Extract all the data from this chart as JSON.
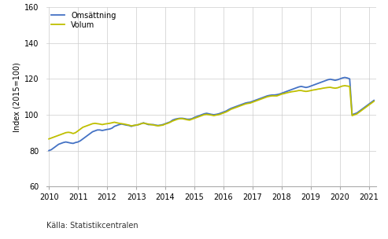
{
  "title": "",
  "ylabel": "Index (2015=100)",
  "source": "Källa: Statistikcentralen",
  "legend_omsattning": "Omsättning",
  "legend_volum": "Volum",
  "color_omsattning": "#4472C4",
  "color_volum": "#BFBF00",
  "ylim": [
    60,
    160
  ],
  "yticks": [
    60,
    80,
    100,
    120,
    140,
    160
  ],
  "background_color": "#ffffff",
  "grid_color": "#cccccc",
  "line_width": 1.3,
  "omsattning": [
    80.0,
    80.5,
    81.5,
    82.5,
    83.5,
    84.0,
    84.5,
    84.8,
    84.5,
    84.2,
    84.0,
    84.5,
    84.8,
    85.5,
    86.5,
    87.5,
    88.5,
    89.5,
    90.5,
    91.0,
    91.5,
    91.5,
    91.2,
    91.5,
    91.8,
    92.0,
    92.5,
    93.5,
    94.0,
    94.5,
    94.8,
    94.5,
    94.2,
    94.0,
    93.5,
    94.0,
    94.2,
    94.5,
    95.0,
    95.5,
    95.0,
    94.5,
    94.5,
    94.5,
    94.2,
    94.0,
    94.2,
    94.5,
    95.0,
    95.5,
    96.0,
    97.0,
    97.5,
    97.8,
    98.0,
    98.0,
    97.8,
    97.5,
    97.5,
    97.8,
    98.5,
    99.0,
    99.5,
    100.0,
    100.5,
    100.8,
    100.5,
    100.2,
    100.0,
    100.2,
    100.5,
    101.0,
    101.5,
    102.0,
    102.8,
    103.5,
    104.0,
    104.5,
    105.0,
    105.5,
    106.0,
    106.5,
    106.8,
    107.0,
    107.5,
    108.0,
    108.5,
    109.0,
    109.5,
    110.0,
    110.5,
    110.8,
    111.0,
    111.0,
    111.2,
    111.5,
    112.0,
    112.5,
    113.0,
    113.5,
    114.0,
    114.5,
    115.0,
    115.5,
    115.8,
    115.5,
    115.2,
    115.5,
    116.0,
    116.5,
    117.0,
    117.5,
    118.0,
    118.5,
    119.0,
    119.5,
    119.8,
    119.5,
    119.2,
    119.5,
    120.0,
    120.5,
    120.8,
    120.5,
    120.0,
    100.0,
    100.5,
    101.0,
    102.0,
    103.0,
    104.0,
    105.0,
    106.0,
    107.0,
    108.0
  ],
  "volum": [
    86.5,
    87.0,
    87.5,
    88.0,
    88.5,
    89.0,
    89.5,
    90.0,
    90.2,
    90.0,
    89.5,
    90.0,
    91.0,
    92.0,
    93.0,
    93.5,
    94.0,
    94.5,
    95.0,
    95.2,
    95.0,
    94.8,
    94.5,
    94.8,
    95.0,
    95.2,
    95.5,
    95.8,
    95.5,
    95.2,
    95.0,
    94.8,
    94.5,
    94.2,
    93.8,
    94.0,
    94.2,
    94.5,
    95.0,
    95.3,
    95.0,
    94.8,
    94.5,
    94.3,
    94.0,
    93.8,
    94.0,
    94.2,
    94.8,
    95.2,
    95.8,
    96.5,
    97.0,
    97.5,
    97.8,
    97.8,
    97.5,
    97.2,
    97.0,
    97.5,
    98.0,
    98.5,
    99.0,
    99.5,
    100.0,
    100.2,
    100.0,
    99.8,
    99.5,
    99.8,
    100.0,
    100.5,
    101.0,
    101.5,
    102.2,
    103.0,
    103.5,
    104.0,
    104.5,
    105.0,
    105.5,
    106.0,
    106.3,
    106.5,
    107.0,
    107.5,
    108.0,
    108.5,
    109.0,
    109.5,
    110.0,
    110.3,
    110.5,
    110.5,
    110.5,
    111.0,
    111.5,
    111.8,
    112.2,
    112.5,
    112.8,
    113.0,
    113.2,
    113.5,
    113.5,
    113.2,
    113.0,
    113.2,
    113.5,
    113.8,
    114.0,
    114.3,
    114.5,
    114.8,
    115.0,
    115.2,
    115.3,
    115.0,
    114.8,
    115.0,
    115.5,
    116.0,
    116.2,
    116.0,
    115.8,
    99.5,
    100.0,
    100.5,
    101.5,
    102.5,
    103.5,
    104.5,
    105.5,
    106.5,
    107.5
  ],
  "x_start_year": 2010,
  "x_end_year": 2021,
  "total_months": 135
}
